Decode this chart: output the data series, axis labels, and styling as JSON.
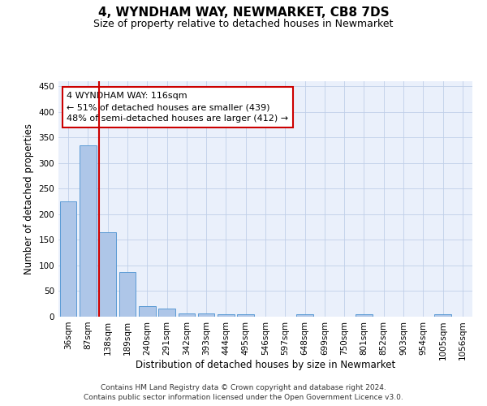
{
  "title": "4, WYNDHAM WAY, NEWMARKET, CB8 7DS",
  "subtitle": "Size of property relative to detached houses in Newmarket",
  "xlabel": "Distribution of detached houses by size in Newmarket",
  "ylabel": "Number of detached properties",
  "categories": [
    "36sqm",
    "87sqm",
    "138sqm",
    "189sqm",
    "240sqm",
    "291sqm",
    "342sqm",
    "393sqm",
    "444sqm",
    "495sqm",
    "546sqm",
    "597sqm",
    "648sqm",
    "699sqm",
    "750sqm",
    "801sqm",
    "852sqm",
    "903sqm",
    "954sqm",
    "1005sqm",
    "1056sqm"
  ],
  "values": [
    225,
    335,
    165,
    87,
    21,
    16,
    6,
    7,
    5,
    5,
    0,
    0,
    4,
    0,
    0,
    4,
    0,
    0,
    0,
    4,
    0
  ],
  "bar_color": "#aec6e8",
  "bar_edge_color": "#5b9bd5",
  "bar_width": 0.85,
  "vline_x": 1.55,
  "vline_color": "#cc0000",
  "annotation_line1": "4 WYNDHAM WAY: 116sqm",
  "annotation_line2": "← 51% of detached houses are smaller (439)",
  "annotation_line3": "48% of semi-detached houses are larger (412) →",
  "annotation_box_color": "#ffffff",
  "annotation_box_edge": "#cc0000",
  "ylim": [
    0,
    460
  ],
  "yticks": [
    0,
    50,
    100,
    150,
    200,
    250,
    300,
    350,
    400,
    450
  ],
  "bg_color": "#eaf0fb",
  "footer1": "Contains HM Land Registry data © Crown copyright and database right 2024.",
  "footer2": "Contains public sector information licensed under the Open Government Licence v3.0.",
  "title_fontsize": 11,
  "subtitle_fontsize": 9,
  "axis_label_fontsize": 8.5,
  "tick_fontsize": 7.5,
  "footer_fontsize": 6.5,
  "annotation_fontsize": 8
}
